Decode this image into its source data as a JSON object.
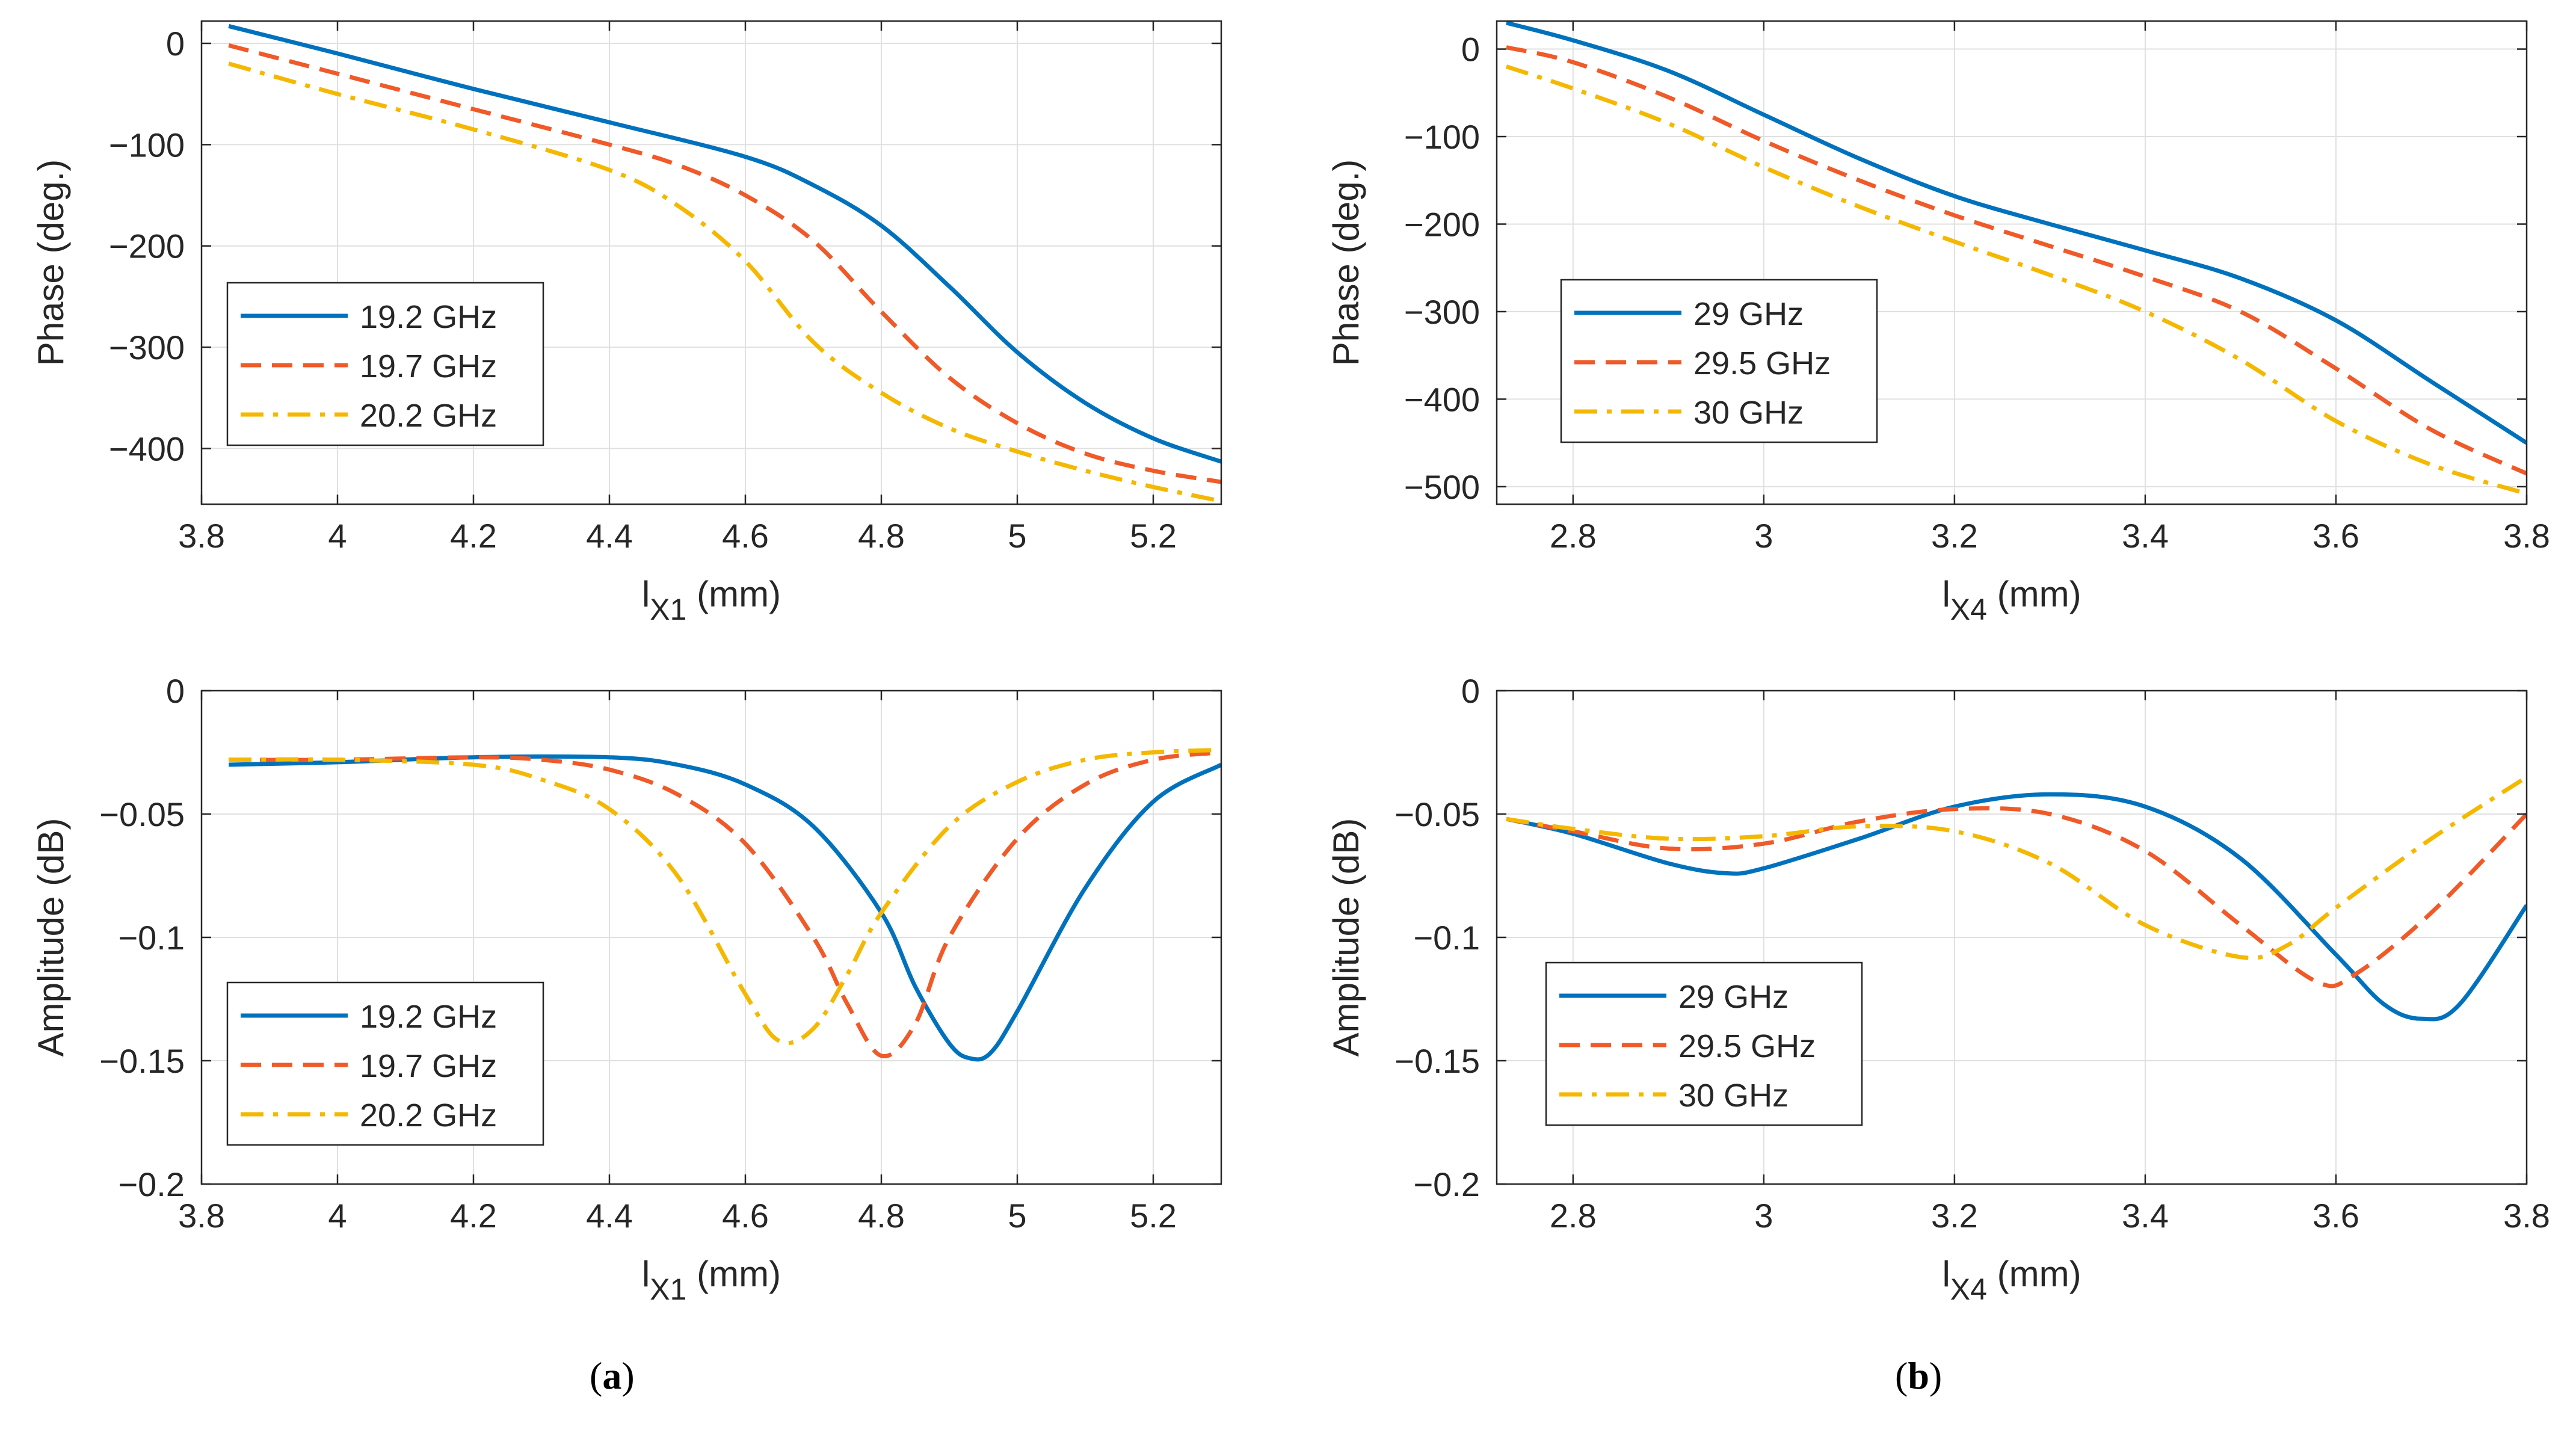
{
  "colors": {
    "s1": "#0072BD",
    "s2": "#F05A28",
    "s3": "#F5B800",
    "axis": "#262626",
    "grid": "#E0E0E0"
  },
  "captions": {
    "a": "a",
    "b": "b"
  },
  "chart_data": [
    {
      "id": "a-phase",
      "type": "line",
      "xlabel_base": "l",
      "xlabel_sub": "X1",
      "xlabel_unit": " (mm)",
      "ylabel": "Phase (deg.)",
      "xlim": [
        3.8,
        5.3
      ],
      "ylim": [
        -455,
        22
      ],
      "xticks": [
        3.8,
        4,
        4.2,
        4.4,
        4.6,
        4.8,
        5,
        5.2
      ],
      "xtick_labels": [
        "3.8",
        "4",
        "4.2",
        "4.4",
        "4.6",
        "4.8",
        "5",
        "5.2"
      ],
      "yticks": [
        0,
        -100,
        -200,
        -300,
        -400
      ],
      "ytick_labels": [
        "0",
        "−100",
        "−200",
        "−300",
        "−400"
      ],
      "grid": true,
      "legend": "lower-left",
      "series": [
        {
          "name": "19.2 GHz",
          "style": "solid",
          "color": "#0072BD",
          "x": [
            3.84,
            4.0,
            4.2,
            4.4,
            4.6,
            4.7,
            4.8,
            4.9,
            5.0,
            5.1,
            5.2,
            5.3
          ],
          "y": [
            17,
            -10,
            -45,
            -78,
            -112,
            -140,
            -180,
            -240,
            -305,
            -355,
            -390,
            -413
          ]
        },
        {
          "name": "19.7 GHz",
          "style": "dashed",
          "color": "#F05A28",
          "x": [
            3.84,
            4.0,
            4.2,
            4.4,
            4.5,
            4.6,
            4.7,
            4.8,
            4.9,
            5.0,
            5.1,
            5.2,
            5.3
          ],
          "y": [
            -2,
            -30,
            -65,
            -100,
            -120,
            -150,
            -195,
            -265,
            -330,
            -375,
            -405,
            -422,
            -433
          ]
        },
        {
          "name": "20.2 GHz",
          "style": "dashdot",
          "color": "#F5B800",
          "x": [
            3.84,
            4.0,
            4.2,
            4.4,
            4.5,
            4.6,
            4.7,
            4.8,
            4.9,
            5.0,
            5.1,
            5.2,
            5.3
          ],
          "y": [
            -20,
            -50,
            -85,
            -125,
            -160,
            -215,
            -295,
            -345,
            -380,
            -403,
            -422,
            -438,
            -452
          ]
        }
      ]
    },
    {
      "id": "b-phase",
      "type": "line",
      "xlabel_base": "l",
      "xlabel_sub": "X4",
      "xlabel_unit": " (mm)",
      "ylabel": "Phase (deg.)",
      "xlim": [
        2.72,
        3.8
      ],
      "ylim": [
        -520,
        32
      ],
      "xticks": [
        2.8,
        3,
        3.2,
        3.4,
        3.6,
        3.8
      ],
      "xtick_labels": [
        "2.8",
        "3",
        "3.2",
        "3.4",
        "3.6",
        "3.8"
      ],
      "yticks": [
        0,
        -100,
        -200,
        -300,
        -400,
        -500
      ],
      "ytick_labels": [
        "0",
        "−100",
        "−200",
        "−300",
        "−400",
        "−500"
      ],
      "grid": true,
      "legend": "lower-left",
      "series": [
        {
          "name": "29 GHz",
          "style": "solid",
          "color": "#0072BD",
          "x": [
            2.73,
            2.8,
            2.9,
            3.0,
            3.1,
            3.2,
            3.3,
            3.4,
            3.5,
            3.6,
            3.7,
            3.8
          ],
          "y": [
            30,
            10,
            -25,
            -75,
            -125,
            -168,
            -200,
            -230,
            -262,
            -310,
            -380,
            -450
          ]
        },
        {
          "name": "29.5 GHz",
          "style": "dashed",
          "color": "#F05A28",
          "x": [
            2.73,
            2.8,
            2.9,
            3.0,
            3.1,
            3.2,
            3.3,
            3.4,
            3.5,
            3.6,
            3.7,
            3.8
          ],
          "y": [
            2,
            -15,
            -55,
            -105,
            -150,
            -190,
            -225,
            -260,
            -300,
            -365,
            -435,
            -485
          ]
        },
        {
          "name": "30 GHz",
          "style": "dashdot",
          "color": "#F5B800",
          "x": [
            2.73,
            2.8,
            2.9,
            3.0,
            3.1,
            3.2,
            3.3,
            3.4,
            3.5,
            3.6,
            3.7,
            3.8
          ],
          "y": [
            -20,
            -45,
            -85,
            -135,
            -180,
            -220,
            -258,
            -300,
            -355,
            -425,
            -475,
            -508
          ]
        }
      ]
    },
    {
      "id": "a-amplitude",
      "type": "line",
      "xlabel_base": "l",
      "xlabel_sub": "X1",
      "xlabel_unit": " (mm)",
      "ylabel": "Amplitude (dB)",
      "xlim": [
        3.8,
        5.3
      ],
      "ylim": [
        -0.2,
        0
      ],
      "xticks": [
        3.8,
        4,
        4.2,
        4.4,
        4.6,
        4.8,
        5,
        5.2
      ],
      "xtick_labels": [
        "3.8",
        "4",
        "4.2",
        "4.4",
        "4.6",
        "4.8",
        "5",
        "5.2"
      ],
      "yticks": [
        0,
        -0.05,
        -0.1,
        -0.15,
        -0.2
      ],
      "ytick_labels": [
        "0",
        "−0.05",
        "−0.1",
        "−0.15",
        "−0.2"
      ],
      "grid": true,
      "legend": "lower-left",
      "series": [
        {
          "name": "19.2 GHz",
          "style": "solid",
          "color": "#0072BD",
          "x": [
            3.84,
            4.0,
            4.2,
            4.4,
            4.5,
            4.6,
            4.7,
            4.8,
            4.85,
            4.9,
            4.93,
            4.96,
            5.0,
            5.1,
            5.2,
            5.3
          ],
          "y": [
            -0.03,
            -0.029,
            -0.027,
            -0.027,
            -0.03,
            -0.038,
            -0.055,
            -0.09,
            -0.12,
            -0.143,
            -0.149,
            -0.147,
            -0.13,
            -0.08,
            -0.045,
            -0.03
          ]
        },
        {
          "name": "19.7 GHz",
          "style": "dashed",
          "color": "#F05A28",
          "x": [
            3.84,
            4.0,
            4.2,
            4.3,
            4.4,
            4.5,
            4.6,
            4.7,
            4.75,
            4.8,
            4.85,
            4.9,
            5.0,
            5.1,
            5.2,
            5.3
          ],
          "y": [
            -0.028,
            -0.028,
            -0.027,
            -0.028,
            -0.032,
            -0.042,
            -0.062,
            -0.1,
            -0.127,
            -0.148,
            -0.135,
            -0.1,
            -0.06,
            -0.038,
            -0.028,
            -0.025
          ]
        },
        {
          "name": "20.2 GHz",
          "style": "dashdot",
          "color": "#F5B800",
          "x": [
            3.84,
            4.0,
            4.2,
            4.3,
            4.4,
            4.5,
            4.6,
            4.65,
            4.7,
            4.75,
            4.8,
            4.9,
            5.0,
            5.1,
            5.2,
            5.3
          ],
          "y": [
            -0.028,
            -0.028,
            -0.03,
            -0.036,
            -0.048,
            -0.075,
            -0.123,
            -0.142,
            -0.137,
            -0.115,
            -0.09,
            -0.055,
            -0.037,
            -0.028,
            -0.025,
            -0.024
          ]
        }
      ]
    },
    {
      "id": "b-amplitude",
      "type": "line",
      "xlabel_base": "l",
      "xlabel_sub": "X4",
      "xlabel_unit": " (mm)",
      "ylabel": "Amplitude (dB)",
      "xlim": [
        2.72,
        3.8
      ],
      "ylim": [
        -0.2,
        0
      ],
      "xticks": [
        2.8,
        3,
        3.2,
        3.4,
        3.6,
        3.8
      ],
      "xtick_labels": [
        "2.8",
        "3",
        "3.2",
        "3.4",
        "3.6",
        "3.8"
      ],
      "yticks": [
        0,
        -0.05,
        -0.1,
        -0.15,
        -0.2
      ],
      "ytick_labels": [
        "0",
        "−0.05",
        "−0.1",
        "−0.15",
        "−0.2"
      ],
      "grid": true,
      "legend": "lower-left",
      "series": [
        {
          "name": "29 GHz",
          "style": "solid",
          "color": "#0072BD",
          "x": [
            2.73,
            2.8,
            2.9,
            2.96,
            3.0,
            3.1,
            3.2,
            3.3,
            3.4,
            3.5,
            3.6,
            3.65,
            3.69,
            3.73,
            3.8
          ],
          "y": [
            -0.052,
            -0.058,
            -0.07,
            -0.074,
            -0.072,
            -0.06,
            -0.047,
            -0.042,
            -0.047,
            -0.068,
            -0.107,
            -0.127,
            -0.133,
            -0.127,
            -0.087
          ]
        },
        {
          "name": "29.5 GHz",
          "style": "dashed",
          "color": "#F05A28",
          "x": [
            2.73,
            2.8,
            2.9,
            3.0,
            3.1,
            3.2,
            3.3,
            3.4,
            3.5,
            3.58,
            3.62,
            3.7,
            3.8
          ],
          "y": [
            -0.052,
            -0.057,
            -0.064,
            -0.062,
            -0.053,
            -0.048,
            -0.05,
            -0.065,
            -0.095,
            -0.118,
            -0.115,
            -0.09,
            -0.05
          ]
        },
        {
          "name": "30 GHz",
          "style": "dashdot",
          "color": "#F5B800",
          "x": [
            2.73,
            2.8,
            2.9,
            3.0,
            3.1,
            3.2,
            3.3,
            3.4,
            3.5,
            3.55,
            3.6,
            3.7,
            3.8
          ],
          "y": [
            -0.052,
            -0.056,
            -0.06,
            -0.059,
            -0.055,
            -0.057,
            -0.07,
            -0.095,
            -0.108,
            -0.103,
            -0.088,
            -0.06,
            -0.035
          ]
        }
      ]
    }
  ]
}
